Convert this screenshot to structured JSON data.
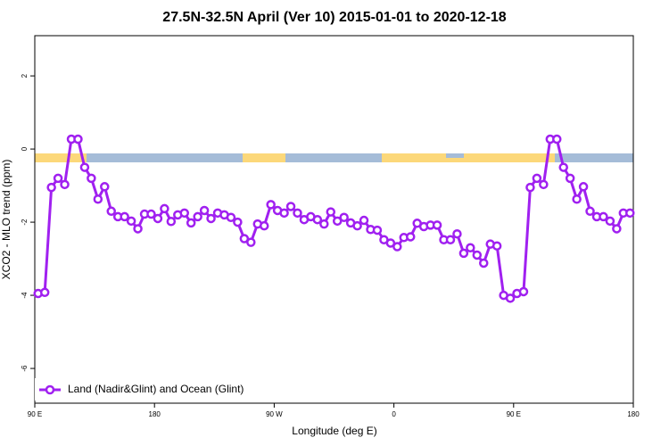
{
  "chart_data": {
    "type": "line",
    "title": "27.5N-32.5N April (Ver 10)   2015-01-01 to 2020-12-18",
    "x_label": "Longitude (deg E)",
    "y_label": "XCO2 - MLO trend (ppm)",
    "x": [
      92.5,
      97.5,
      102.5,
      107.5,
      112.5,
      117.5,
      122.5,
      127.5,
      132.5,
      137.5,
      142.5,
      147.5,
      152.5,
      157.5,
      162.5,
      167.5,
      172.5,
      177.5,
      182.5,
      187.5,
      192.5,
      197.5,
      202.5,
      207.5,
      212.5,
      217.5,
      222.5,
      227.5,
      232.5,
      237.5,
      242.5,
      247.5,
      252.5,
      257.5,
      262.5,
      267.5,
      272.5,
      277.5,
      282.5,
      287.5,
      292.5,
      297.5,
      302.5,
      307.5,
      312.5,
      317.5,
      322.5,
      327.5,
      332.5,
      337.5,
      342.5,
      347.5,
      352.5,
      357.5,
      362.5,
      367.5,
      372.5,
      377.5,
      382.5,
      387.5,
      392.5,
      397.5,
      402.5,
      407.5,
      412.5,
      417.5,
      422.5,
      427.5,
      432.5,
      437.5,
      442.5,
      447.5,
      452.5,
      457.5,
      462.5,
      467.5,
      472.5,
      477.5,
      482.5,
      487.5,
      492.5,
      497.5,
      502.5,
      507.5,
      512.5,
      517.5,
      522.5,
      527.5,
      532.5,
      537.5
    ],
    "series": [
      {
        "name": "Land (Nadir&Glint) and Ocean (Glint)",
        "color": "#a020f0",
        "values": [
          -3.95,
          -3.92,
          -1.05,
          -0.8,
          -0.97,
          0.27,
          0.27,
          -0.5,
          -0.8,
          -1.37,
          -1.03,
          -1.7,
          -1.85,
          -1.85,
          -1.97,
          -2.18,
          -1.78,
          -1.78,
          -1.9,
          -1.63,
          -1.98,
          -1.8,
          -1.75,
          -2.02,
          -1.85,
          -1.68,
          -1.9,
          -1.75,
          -1.8,
          -1.87,
          -2.0,
          -2.45,
          -2.55,
          -2.05,
          -2.1,
          -1.52,
          -1.68,
          -1.75,
          -1.57,
          -1.75,
          -1.93,
          -1.85,
          -1.93,
          -2.05,
          -1.72,
          -1.97,
          -1.87,
          -2.02,
          -2.1,
          -1.95,
          -2.2,
          -2.22,
          -2.48,
          -2.57,
          -2.67,
          -2.42,
          -2.4,
          -2.03,
          -2.12,
          -2.08,
          -2.08,
          -2.48,
          -2.48,
          -2.32,
          -2.85,
          -2.7,
          -2.9,
          -3.12,
          -2.6,
          -2.65,
          -4.0,
          -4.08,
          -3.95,
          -3.9,
          -1.05,
          -0.8,
          -0.97,
          0.27,
          0.27,
          -0.5,
          -0.8,
          -1.37,
          -1.03,
          -1.7,
          -1.85,
          -1.85,
          -1.97,
          -2.18,
          -1.75,
          -1.75
        ]
      }
    ],
    "xlim": [
      90,
      540
    ],
    "xticks": [
      {
        "value": 90,
        "label": "90 E"
      },
      {
        "value": 180,
        "label": "180"
      },
      {
        "value": 270,
        "label": "90 W"
      },
      {
        "value": 360,
        "label": "0"
      },
      {
        "value": 450,
        "label": "90 E"
      },
      {
        "value": 540,
        "label": "180"
      }
    ],
    "ylim": [
      -6.95,
      3.1
    ],
    "yticks": [
      -6,
      -4,
      -2,
      0,
      2
    ],
    "legend": "bottomleft"
  }
}
